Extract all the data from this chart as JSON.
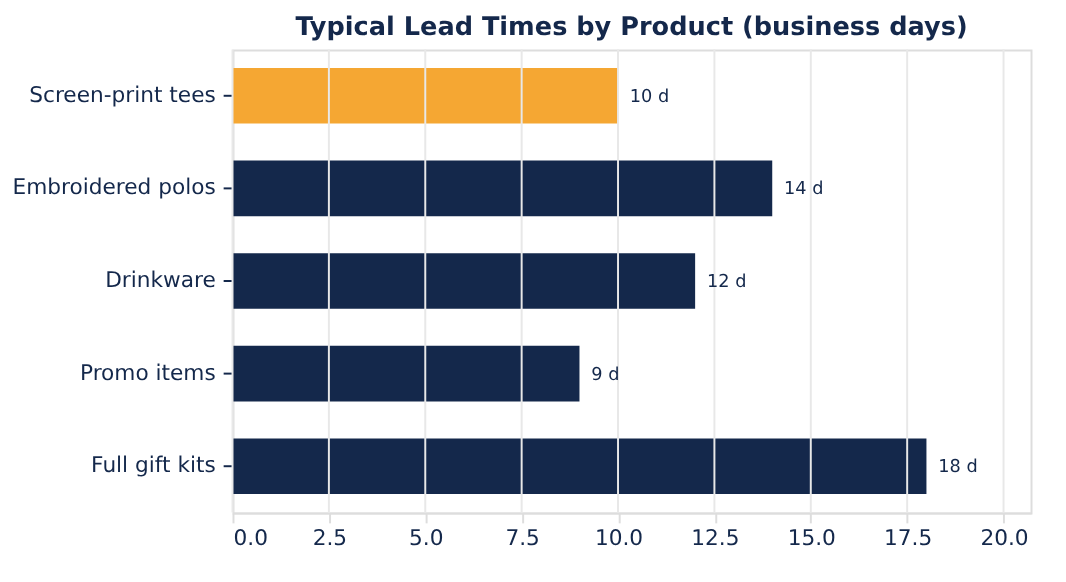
{
  "chart_data": {
    "type": "bar",
    "orientation": "horizontal",
    "title": "Typical Lead Times by Product (business days)",
    "categories": [
      "Screen-print tees",
      "Embroidered polos",
      "Drinkware",
      "Promo items",
      "Full gift kits"
    ],
    "values": [
      10,
      14,
      12,
      9,
      18
    ],
    "colors": [
      "#f5a733",
      "#14284b",
      "#14284b",
      "#14284b",
      "#14284b"
    ],
    "value_labels": [
      "10 d",
      "14 d",
      "12 d",
      "9 d",
      "18 d"
    ],
    "xlim": [
      0,
      20.7
    ],
    "xticks": [
      {
        "value": 0,
        "label": "0.0"
      },
      {
        "value": 2.5,
        "label": "2.5"
      },
      {
        "value": 5,
        "label": "5.0"
      },
      {
        "value": 7.5,
        "label": "7.5"
      },
      {
        "value": 10,
        "label": "10.0"
      },
      {
        "value": 12.5,
        "label": "12.5"
      },
      {
        "value": 15,
        "label": "15.0"
      },
      {
        "value": 17.5,
        "label": "17.5"
      },
      {
        "value": 20,
        "label": "20.0"
      }
    ],
    "grid": "x"
  }
}
